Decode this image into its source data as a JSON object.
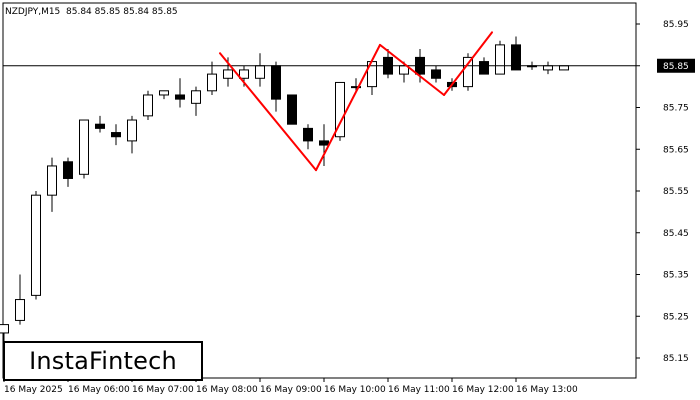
{
  "header": {
    "symbol": "NZDJPY,M15",
    "ohlc": "85.84 85.85 85.84 85.85"
  },
  "logo": {
    "text": "InstaFintech"
  },
  "current_price_label": "85.85",
  "colors": {
    "background": "#ffffff",
    "candle_up": "#ffffff",
    "candle_down": "#000000",
    "candle_outline": "#000000",
    "pattern_line": "#ff0000",
    "price_line": "#000000",
    "price_badge": "#000000",
    "price_badge_text": "#ffffff"
  },
  "chart_data": {
    "type": "candlestick",
    "instrument": "NZDJPY",
    "timeframe": "M15",
    "ylim": [
      85.1,
      86.0
    ],
    "y_ticks": [
      "85.95",
      "85.85",
      "85.75",
      "85.65",
      "85.55",
      "85.45",
      "85.35",
      "85.25",
      "85.15"
    ],
    "x_ticks": [
      "16 May 2025",
      "16 May 06:00",
      "16 May 07:00",
      "16 May 08:00",
      "16 May 09:00",
      "16 May 10:00",
      "16 May 11:00",
      "16 May 12:00",
      "16 May 13:00"
    ],
    "current_price": 85.85,
    "candles": [
      {
        "o": 85.21,
        "h": 85.23,
        "l": 85.19,
        "c": 85.23
      },
      {
        "o": 85.24,
        "h": 85.35,
        "l": 85.23,
        "c": 85.29
      },
      {
        "o": 85.3,
        "h": 85.55,
        "l": 85.29,
        "c": 85.54
      },
      {
        "o": 85.54,
        "h": 85.63,
        "l": 85.5,
        "c": 85.61
      },
      {
        "o": 85.62,
        "h": 85.63,
        "l": 85.56,
        "c": 85.58
      },
      {
        "o": 85.59,
        "h": 85.72,
        "l": 85.58,
        "c": 85.72
      },
      {
        "o": 85.71,
        "h": 85.73,
        "l": 85.69,
        "c": 85.7
      },
      {
        "o": 85.69,
        "h": 85.71,
        "l": 85.66,
        "c": 85.68
      },
      {
        "o": 85.67,
        "h": 85.73,
        "l": 85.64,
        "c": 85.72
      },
      {
        "o": 85.73,
        "h": 85.79,
        "l": 85.72,
        "c": 85.78
      },
      {
        "o": 85.78,
        "h": 85.79,
        "l": 85.77,
        "c": 85.79
      },
      {
        "o": 85.78,
        "h": 85.82,
        "l": 85.75,
        "c": 85.77
      },
      {
        "o": 85.76,
        "h": 85.8,
        "l": 85.73,
        "c": 85.79
      },
      {
        "o": 85.79,
        "h": 85.86,
        "l": 85.78,
        "c": 85.83
      },
      {
        "o": 85.82,
        "h": 85.87,
        "l": 85.8,
        "c": 85.84
      },
      {
        "o": 85.82,
        "h": 85.85,
        "l": 85.8,
        "c": 85.84
      },
      {
        "o": 85.82,
        "h": 85.88,
        "l": 85.8,
        "c": 85.85
      },
      {
        "o": 85.85,
        "h": 85.86,
        "l": 85.74,
        "c": 85.77
      },
      {
        "o": 85.78,
        "h": 85.78,
        "l": 85.71,
        "c": 85.71
      },
      {
        "o": 85.7,
        "h": 85.71,
        "l": 85.65,
        "c": 85.67
      },
      {
        "o": 85.67,
        "h": 85.71,
        "l": 85.61,
        "c": 85.66
      },
      {
        "o": 85.68,
        "h": 85.81,
        "l": 85.67,
        "c": 85.81
      },
      {
        "o": 85.8,
        "h": 85.82,
        "l": 85.79,
        "c": 85.8
      },
      {
        "o": 85.8,
        "h": 85.86,
        "l": 85.78,
        "c": 85.86
      },
      {
        "o": 85.87,
        "h": 85.89,
        "l": 85.82,
        "c": 85.83
      },
      {
        "o": 85.83,
        "h": 85.86,
        "l": 85.81,
        "c": 85.85
      },
      {
        "o": 85.87,
        "h": 85.89,
        "l": 85.81,
        "c": 85.83
      },
      {
        "o": 85.84,
        "h": 85.85,
        "l": 85.81,
        "c": 85.82
      },
      {
        "o": 85.81,
        "h": 85.82,
        "l": 85.79,
        "c": 85.8
      },
      {
        "o": 85.8,
        "h": 85.88,
        "l": 85.79,
        "c": 85.87
      },
      {
        "o": 85.86,
        "h": 85.87,
        "l": 85.83,
        "c": 85.83
      },
      {
        "o": 85.83,
        "h": 85.91,
        "l": 85.83,
        "c": 85.9
      },
      {
        "o": 85.9,
        "h": 85.92,
        "l": 85.84,
        "c": 85.84
      },
      {
        "o": 85.85,
        "h": 85.86,
        "l": 85.84,
        "c": 85.85
      },
      {
        "o": 85.84,
        "h": 85.86,
        "l": 85.83,
        "c": 85.85
      },
      {
        "o": 85.84,
        "h": 85.85,
        "l": 85.84,
        "c": 85.85
      }
    ],
    "pattern_lines": [
      {
        "from": {
          "candle": 13.5,
          "price": 85.88
        },
        "to": {
          "candle": 19.5,
          "price": 85.6
        }
      },
      {
        "from": {
          "candle": 19.5,
          "price": 85.6
        },
        "to": {
          "candle": 23.5,
          "price": 85.9
        }
      },
      {
        "from": {
          "candle": 23.5,
          "price": 85.9
        },
        "to": {
          "candle": 27.5,
          "price": 85.78
        }
      },
      {
        "from": {
          "candle": 27.5,
          "price": 85.78
        },
        "to": {
          "candle": 30.5,
          "price": 85.93
        }
      }
    ]
  }
}
